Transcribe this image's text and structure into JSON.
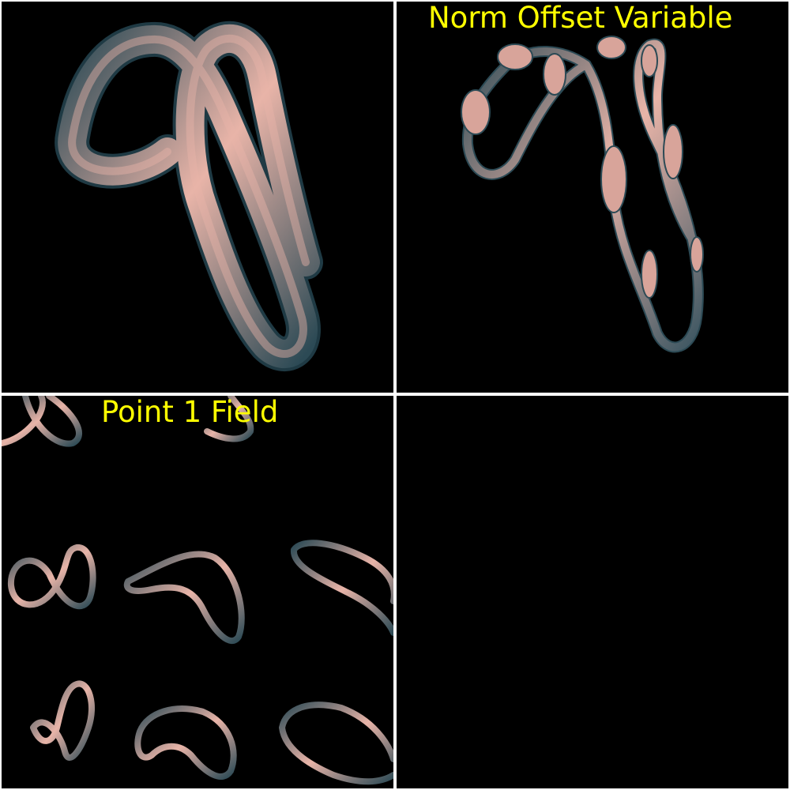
{
  "viewports": {
    "top_left": {
      "title": ""
    },
    "top_right": {
      "title": "Norm Offset Variable"
    },
    "bottom_left": {
      "title": "Point 1 Field"
    },
    "bottom_right": {
      "title": ""
    }
  },
  "colors": {
    "background": "#000000",
    "divider": "#ffffff",
    "title": "#ffff00",
    "tube_highlight": "#e8b4a8",
    "tube_mid": "#a07a78",
    "tube_shadow": "#2c4a55"
  }
}
